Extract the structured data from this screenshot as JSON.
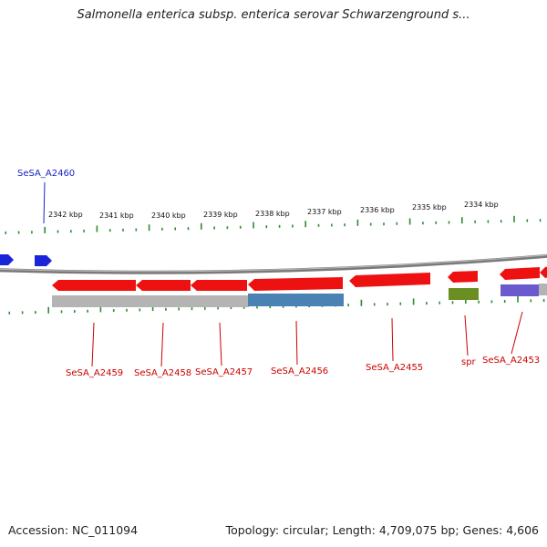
{
  "header": {
    "title": "Salmonella enterica subsp. enterica serovar Schwarzenground s..."
  },
  "footer": {
    "accession": "Accession: NC_011094",
    "summary": "Topology: circular; Length: 4,709,075 bp; Genes: 4,606"
  },
  "colors": {
    "backbone": "#8c8c8c",
    "tick": "#2e8b2e",
    "gene_red": "#ee1111",
    "gene_blue": "#1a24d9",
    "label_red": "#cc0000",
    "label_blue": "#1a24c0",
    "feature_grey": "#b4b4b4",
    "feature_steelblue": "#4a82b4",
    "feature_green": "#6a8e22",
    "feature_purple": "#6a5acd"
  },
  "map": {
    "scale_labels": [
      "2342 kbp",
      "2341 kbp",
      "2340 kbp",
      "2339 kbp",
      "2338 kbp",
      "2337 kbp",
      "2336 kbp",
      "2335 kbp",
      "2334 kbp"
    ],
    "labels": [
      {
        "name": "SeSA_A2460",
        "strand": "forward"
      },
      {
        "name": "SeSA_A2459",
        "strand": "reverse"
      },
      {
        "name": "SeSA_A2458",
        "strand": "reverse"
      },
      {
        "name": "SeSA_A2457",
        "strand": "reverse"
      },
      {
        "name": "SeSA_A2456",
        "strand": "reverse"
      },
      {
        "name": "SeSA_A2455",
        "strand": "reverse"
      },
      {
        "name": "spr",
        "strand": "reverse"
      },
      {
        "name": "SeSA_A2453",
        "strand": "reverse"
      }
    ]
  }
}
